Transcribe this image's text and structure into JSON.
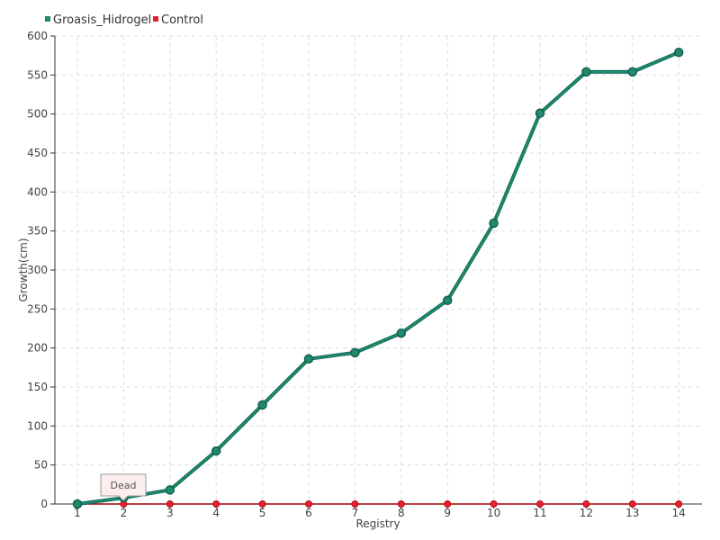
{
  "chart_data": {
    "type": "line",
    "title": "",
    "xlabel": "Registry",
    "ylabel": "Growth(cm)",
    "categories": [
      "1",
      "2",
      "3",
      "4",
      "5",
      "6",
      "7",
      "8",
      "9",
      "10",
      "11",
      "12",
      "13",
      "14"
    ],
    "ylim": [
      0,
      600
    ],
    "yticks": [
      0,
      50,
      100,
      150,
      200,
      250,
      300,
      350,
      400,
      450,
      500,
      550,
      600
    ],
    "grid": true,
    "legend_position": "top-left",
    "series": [
      {
        "name": "Groasis_Hidrogel",
        "color": "#1f8a70",
        "values": [
          0,
          8,
          18,
          68,
          127,
          186,
          194,
          219,
          261,
          360,
          501,
          554,
          554,
          579
        ]
      },
      {
        "name": "Control",
        "color": "#e8202e",
        "values": [
          0,
          0,
          0,
          0,
          0,
          0,
          0,
          0,
          0,
          0,
          0,
          0,
          0,
          0
        ]
      }
    ],
    "annotation": {
      "text": "Dead",
      "category": "2",
      "series": "Control"
    }
  }
}
